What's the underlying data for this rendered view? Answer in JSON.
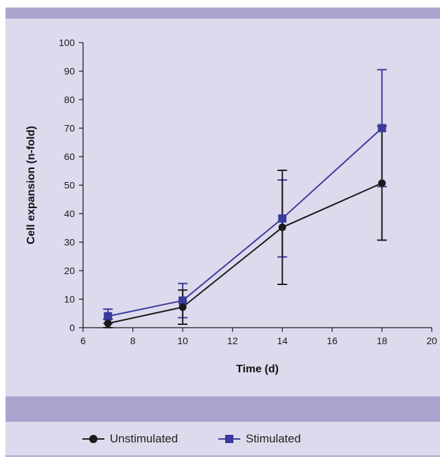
{
  "chart_data": {
    "type": "line",
    "xlabel": "Time (d)",
    "ylabel": "Cell expansion (n-fold)",
    "xlim": [
      6,
      20
    ],
    "ylim": [
      0,
      100
    ],
    "xticks": [
      6,
      8,
      10,
      12,
      14,
      16,
      18,
      20
    ],
    "yticks": [
      0,
      10,
      20,
      30,
      40,
      50,
      60,
      70,
      80,
      90,
      100
    ],
    "grid": false,
    "legend_position": "bottom",
    "series": [
      {
        "name": "Unstimulated",
        "marker": "circle",
        "color": "#1a1a1a",
        "x": [
          7,
          10,
          14,
          18
        ],
        "y": [
          1.5,
          7.2,
          35.2,
          50.7
        ],
        "error": [
          1.5,
          6,
          20,
          20
        ]
      },
      {
        "name": "Stimulated",
        "marker": "square",
        "color": "#3a3a9c",
        "x": [
          7,
          10,
          14,
          18
        ],
        "y": [
          4,
          9.5,
          38.3,
          70
        ],
        "error": [
          2.5,
          6,
          13.5,
          20.5
        ]
      }
    ]
  },
  "legend": {
    "items": [
      {
        "label": "Unstimulated"
      },
      {
        "label": "Stimulated"
      }
    ]
  }
}
